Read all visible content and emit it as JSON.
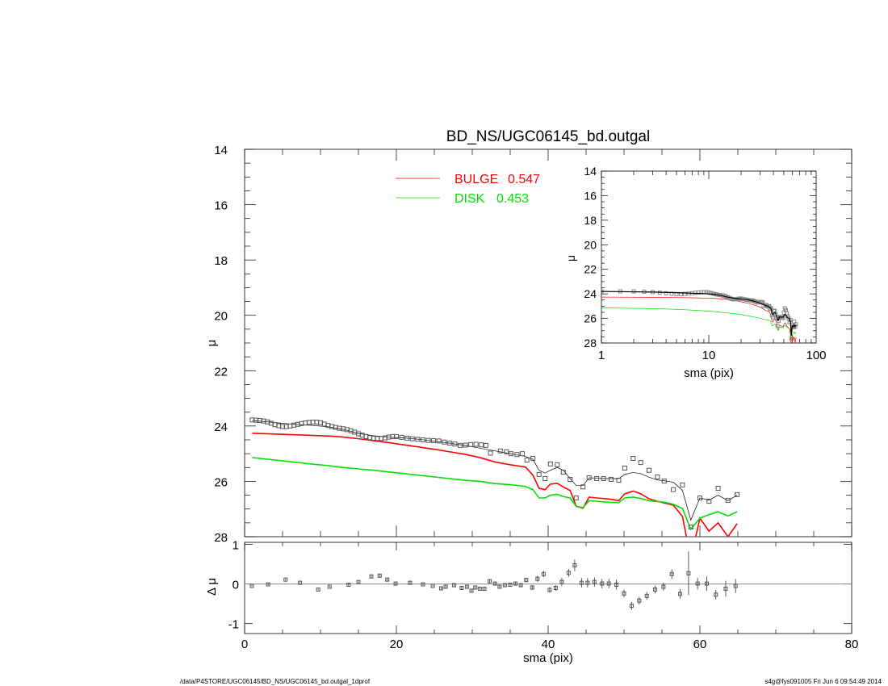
{
  "chart_data": [
    {
      "type": "scatter",
      "panel": "main",
      "title": "BD_NS/UGC06145_bd.outgal",
      "xlabel": "",
      "ylabel": "μ",
      "xlim": [
        0,
        80
      ],
      "ylim": [
        28,
        14
      ],
      "y_inverted": true,
      "xticks": [
        0,
        20,
        40,
        60,
        80
      ],
      "yticks": [
        14,
        16,
        18,
        20,
        22,
        24,
        26,
        28
      ],
      "legend_placement": "top-center",
      "legend": [
        {
          "label": "BULGE",
          "value": "0.547",
          "color": "#ff0000"
        },
        {
          "label": "DISK",
          "value": "0.453",
          "color": "#00e000"
        }
      ],
      "observed": {
        "x": [
          1,
          1.5,
          2,
          2.5,
          3,
          3.5,
          4,
          4.5,
          5,
          5.5,
          6,
          6.5,
          7,
          7.5,
          8,
          8.5,
          9,
          9.5,
          10,
          10.5,
          11,
          11.5,
          12,
          12.5,
          13,
          13.5,
          14,
          14.5,
          15,
          15.5,
          16,
          16.5,
          17,
          17.5,
          18,
          18.5,
          19,
          19.5,
          20,
          20.7,
          21.4,
          22.1,
          22.8,
          23.5,
          24.2,
          24.9,
          25.6,
          26.3,
          27,
          27.7,
          28.4,
          29.1,
          29.8,
          30.5,
          31.2,
          31.8,
          32.4,
          33.7,
          34.5,
          35.1,
          35.9,
          36.6,
          37.2,
          38,
          38.8,
          39.6,
          40.3,
          41.2,
          42,
          42.9,
          43.7,
          44.6,
          45.4,
          46.4,
          47.3,
          48.3,
          49.3,
          50.1,
          51.2,
          52.2,
          53.3,
          54.4,
          55.3,
          56.5,
          57.7,
          58.8,
          60,
          61.2,
          62.4,
          63.7,
          64.9
        ],
        "mu": [
          23.78,
          23.79,
          23.8,
          23.82,
          23.85,
          23.9,
          23.95,
          23.99,
          24.02,
          24.02,
          24,
          23.97,
          23.94,
          23.91,
          23.89,
          23.87,
          23.86,
          23.86,
          23.88,
          23.93,
          23.98,
          24.02,
          24.05,
          24.08,
          24.1,
          24.13,
          24.17,
          24.22,
          24.28,
          24.33,
          24.38,
          24.42,
          24.44,
          24.45,
          24.45,
          24.43,
          24.4,
          24.38,
          24.38,
          24.41,
          24.44,
          24.46,
          24.48,
          24.5,
          24.52,
          24.53,
          24.54,
          24.58,
          24.62,
          24.65,
          24.7,
          24.69,
          24.67,
          24.66,
          24.68,
          24.7,
          24.98,
          24.9,
          24.93,
          25,
          25.03,
          25,
          25.23,
          25.17,
          25.75,
          25.9,
          25.37,
          25.4,
          25.67,
          25.93,
          26.6,
          26.2,
          25.87,
          25.9,
          25.9,
          25.93,
          25.96,
          25.52,
          25.17,
          25.32,
          25.6,
          25.84,
          25.99,
          26.3,
          26.13,
          27.65,
          26.6,
          26.72,
          26.25,
          26.69,
          26.48
        ]
      },
      "model_x": [
        1,
        3,
        5,
        7,
        9,
        11,
        13,
        15,
        17,
        19,
        21,
        23,
        25,
        27,
        29,
        31,
        33,
        35,
        37,
        38,
        38.8,
        39.6,
        40.3,
        41.2,
        42,
        42.9,
        43.7,
        44.6,
        45.4,
        46.4,
        47.3,
        48.3,
        49.3,
        50.1,
        51.2,
        52.2,
        53.3,
        54.4,
        55.3,
        56.5,
        57.7,
        58.8,
        60,
        61.2,
        62.4,
        63.7,
        64.9
      ],
      "model_total": [
        23.8,
        23.85,
        23.9,
        23.95,
        23.98,
        24.03,
        24.12,
        24.27,
        24.35,
        24.4,
        24.43,
        24.48,
        24.55,
        24.62,
        24.7,
        24.8,
        24.9,
        25,
        25.1,
        25.2,
        25.6,
        25.7,
        25.6,
        25.5,
        25.6,
        25.9,
        26.15,
        26.15,
        25.87,
        25.88,
        25.9,
        25.9,
        25.9,
        25.75,
        25.68,
        25.72,
        25.85,
        25.95,
        25.98,
        26.03,
        26.33,
        27.4,
        26.6,
        26.68,
        26.5,
        26.7,
        26.5
      ],
      "bulge": [
        24.26,
        24.28,
        24.3,
        24.32,
        24.34,
        24.36,
        24.4,
        24.46,
        24.53,
        24.6,
        24.68,
        24.76,
        24.84,
        24.93,
        25.02,
        25.14,
        25.3,
        25.4,
        25.48,
        25.78,
        26.25,
        26.3,
        26.1,
        26.07,
        26.2,
        26.33,
        26.9,
        26.97,
        26.57,
        26.6,
        26.62,
        26.65,
        26.7,
        26.45,
        26.35,
        26.45,
        26.63,
        26.72,
        26.78,
        26.86,
        27.27,
        28.8,
        27.33,
        27.8,
        27.5,
        28,
        27.53
      ],
      "disk": [
        25.14,
        25.2,
        25.26,
        25.32,
        25.38,
        25.43,
        25.5,
        25.55,
        25.6,
        25.66,
        25.72,
        25.78,
        25.84,
        25.9,
        25.96,
        26,
        26.08,
        26.12,
        26.18,
        26.3,
        26.6,
        26.6,
        26.5,
        26.47,
        26.55,
        26.6,
        26.9,
        26.95,
        26.7,
        26.72,
        26.74,
        26.76,
        26.77,
        26.6,
        26.57,
        26.62,
        26.7,
        26.73,
        26.75,
        26.83,
        26.98,
        27.73,
        27.33,
        27.2,
        27.1,
        27.25,
        27.1
      ],
      "colors": {
        "observed": "#555555",
        "model_total": "#000000",
        "bulge": "#ff0000",
        "disk": "#00e000"
      }
    },
    {
      "type": "scatter",
      "panel": "residual",
      "xlabel": "sma (pix)",
      "ylabel": "Δ μ",
      "xlim": [
        0,
        80
      ],
      "ylim": [
        -1.25,
        1.05
      ],
      "xticks": [
        0,
        20,
        40,
        60,
        80
      ],
      "yticks": [
        -1,
        0,
        1
      ],
      "x": [
        0.96,
        3.1,
        5.4,
        7.3,
        9.7,
        11.2,
        13.7,
        15,
        16.7,
        17.8,
        18.8,
        19.9,
        21.8,
        23.5,
        24.8,
        25.9,
        26.5,
        27.6,
        28.6,
        29.3,
        29.9,
        30.4,
        31,
        31.6,
        32.3,
        33,
        33.6,
        34.3,
        35,
        35.7,
        36.4,
        37.1,
        37.9,
        38.6,
        39.4,
        40.2,
        41,
        41.8,
        42.7,
        43.5,
        44.4,
        45.2,
        46.1,
        47.1,
        48,
        49,
        50,
        51,
        52,
        53,
        54.1,
        55.2,
        56.3,
        57.4,
        58.5,
        59.7,
        60.9,
        62.1,
        63.4,
        64.7
      ],
      "y": [
        -0.05,
        -0.01,
        0.11,
        0.03,
        -0.14,
        -0.07,
        -0.02,
        0.05,
        0.19,
        0.21,
        0.11,
        0.01,
        0.03,
        -0.01,
        -0.05,
        -0.11,
        -0.07,
        -0.03,
        -0.1,
        -0.07,
        -0.17,
        -0.09,
        -0.12,
        -0.12,
        0.07,
        0.01,
        -0.07,
        -0.03,
        -0.02,
        0.01,
        -0.03,
        0.1,
        -0.09,
        0.13,
        0.25,
        -0.15,
        -0.1,
        0.05,
        0.28,
        0.47,
        0.03,
        0.03,
        0.05,
        0.01,
        0.01,
        -0.02,
        -0.24,
        -0.55,
        -0.42,
        -0.3,
        -0.14,
        -0.07,
        0.25,
        -0.25,
        0.27,
        0.01,
        0.01,
        -0.27,
        -0.12,
        -0.05
      ],
      "err": [
        0.02,
        0.02,
        0.02,
        0.02,
        0.02,
        0.02,
        0.03,
        0.04,
        0.05,
        0.05,
        0.04,
        0.03,
        0.03,
        0.02,
        0.02,
        0.03,
        0.03,
        0.03,
        0.04,
        0.04,
        0.05,
        0.04,
        0.04,
        0.04,
        0.05,
        0.05,
        0.05,
        0.05,
        0.05,
        0.05,
        0.05,
        0.06,
        0.06,
        0.08,
        0.08,
        0.07,
        0.07,
        0.1,
        0.1,
        0.15,
        0.12,
        0.12,
        0.12,
        0.12,
        0.12,
        0.12,
        0.1,
        0.1,
        0.1,
        0.1,
        0.1,
        0.1,
        0.12,
        0.12,
        0.55,
        0.15,
        0.18,
        0.12,
        0.2,
        0.18
      ]
    },
    {
      "type": "line",
      "panel": "inset",
      "xlabel": "sma (pix)",
      "ylabel": "μ",
      "xscale": "log",
      "xlim": [
        1,
        100
      ],
      "ylim": [
        28,
        14
      ],
      "xticks": [
        1,
        10,
        100
      ],
      "yticks": [
        14,
        16,
        18,
        20,
        22,
        24,
        26,
        28
      ],
      "data_source": "same series as main panel"
    }
  ],
  "footer": {
    "left": "/data/P4STORE/UGC06145/BD_NS/UGC06145_bd.outgal_1dprof",
    "right": "s4g@fys091005  Fri Jun  6 09:54:49 2014"
  }
}
